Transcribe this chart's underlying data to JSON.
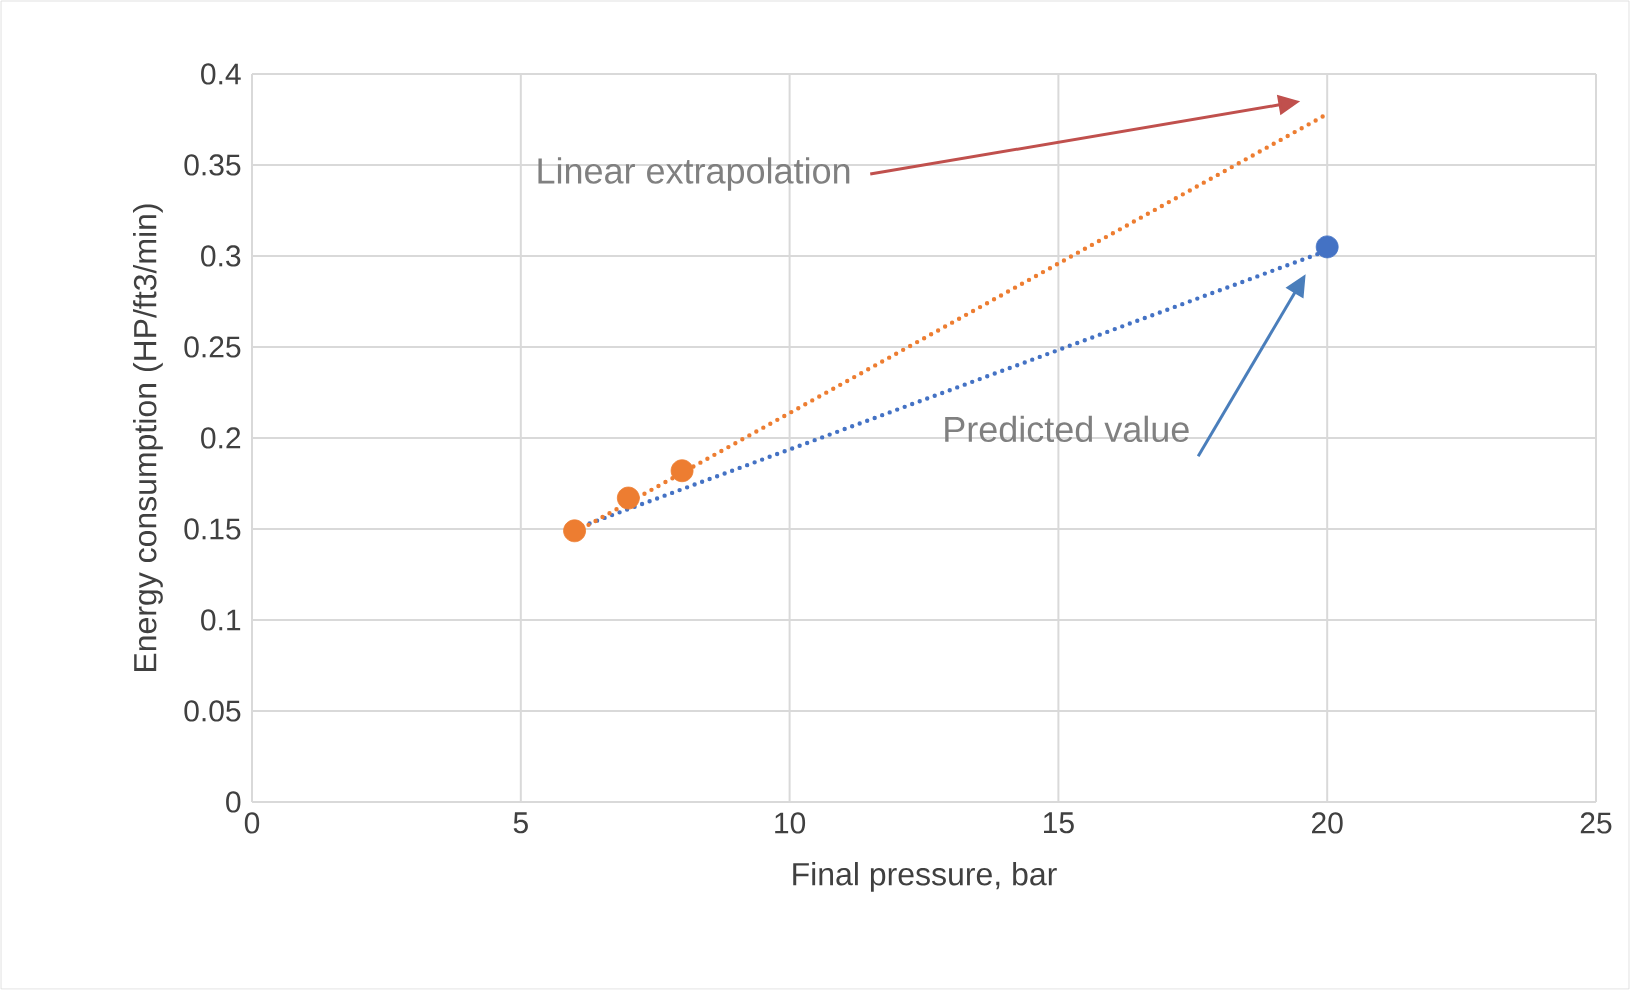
{
  "chart_data": {
    "type": "scatter",
    "xlabel": "Final pressure, bar",
    "ylabel": "Energy consumption (HP/ft3/min)",
    "xlim": [
      0,
      25
    ],
    "xticks": [
      0,
      5,
      10,
      15,
      20,
      25
    ],
    "ylim": [
      0,
      0.4
    ],
    "yticks": [
      0,
      0.05,
      0.1,
      0.15,
      0.2,
      0.25,
      0.3,
      0.35,
      0.4
    ],
    "grid": true,
    "marker": "circle",
    "series": [
      {
        "type": "line",
        "color": "#4472c4",
        "x": [
          6,
          20
        ],
        "values": [
          0.15,
          0.303
        ],
        "marker": "none",
        "line_style": "dotted"
      },
      {
        "type": "line",
        "color": "#ed7d31",
        "x": [
          6,
          20
        ],
        "values": [
          0.148,
          0.378
        ],
        "marker": "none",
        "line_style": "dotted"
      },
      {
        "color": "#4472c4",
        "x": [
          20
        ],
        "values": [
          0.305
        ]
      },
      {
        "color": "#ed7d31",
        "x": [
          6,
          7,
          8
        ],
        "values": [
          0.149,
          0.167,
          0.182
        ]
      }
    ],
    "annotations": [
      "Linear extrapolation",
      "Predicted value"
    ]
  }
}
